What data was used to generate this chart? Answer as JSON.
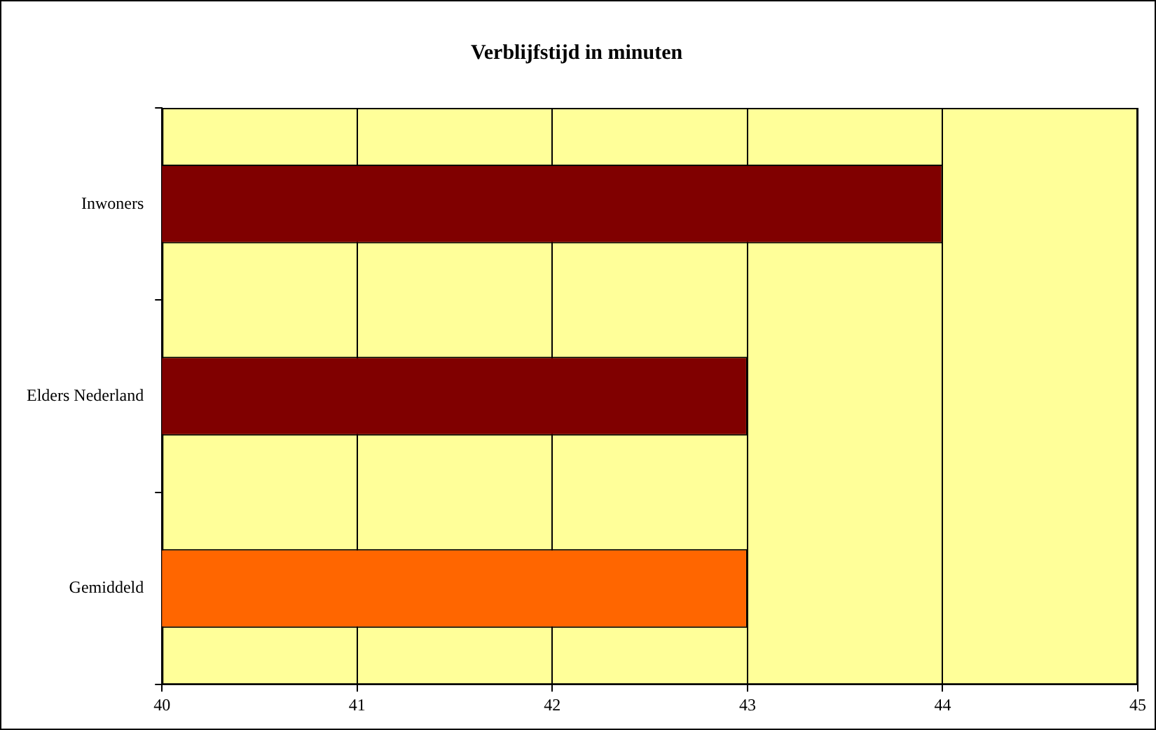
{
  "chart_data": {
    "type": "bar",
    "title": "Verblijfstijd in minuten",
    "orientation": "horizontal",
    "categories": [
      "Inwoners",
      "Elders Nederland",
      "Gemiddeld"
    ],
    "values": [
      44,
      43,
      43
    ],
    "colors": [
      "#800000",
      "#800000",
      "#ff6600"
    ],
    "xlim": [
      40,
      45
    ],
    "xticks": [
      40,
      41,
      42,
      43,
      44,
      45
    ],
    "grid": "x",
    "legend": false
  }
}
